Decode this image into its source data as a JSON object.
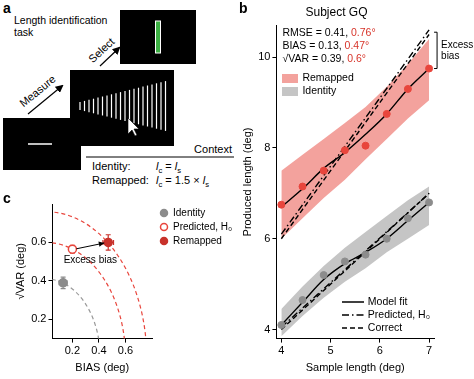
{
  "panel_a": {
    "label": "a",
    "title": "Length identification task",
    "steps": [
      "Measure",
      "Select"
    ],
    "context": {
      "header": "Context",
      "rows": [
        {
          "label": "Identity:",
          "formula": [
            {
              "text": "l",
              "sub": "c"
            },
            {
              "text": " = "
            },
            {
              "text": "l",
              "sub": "s"
            }
          ]
        },
        {
          "label": "Remapped:",
          "formula": [
            {
              "text": "l",
              "sub": "c"
            },
            {
              "text": " = 1.5 × "
            },
            {
              "text": "l",
              "sub": "s"
            }
          ]
        }
      ]
    }
  },
  "chart_data": [
    {
      "panel_label": "b",
      "type": "line",
      "title": "Subject GQ",
      "x_label": "Sample length (deg)",
      "y_label": "Produced length (deg)",
      "xlim": [
        3.9,
        7.1
      ],
      "ylim": [
        3.8,
        10.7
      ],
      "xticks": [
        4,
        5,
        6,
        7
      ],
      "yticks": [
        4,
        6,
        8,
        10
      ],
      "grid": false,
      "stats": [
        [
          {
            "text": "RMSE = 0.41, ",
            "color": "#000000"
          },
          {
            "text": "0.76°",
            "color": "#d7342a"
          }
        ],
        [
          {
            "text": "BIAS = 0.13, ",
            "color": "#000000"
          },
          {
            "text": "0.47°",
            "color": "#d7342a"
          }
        ],
        [
          {
            "text": "√VAR = 0.39, ",
            "color": "#000000"
          },
          {
            "text": "0.6°",
            "color": "#d7342a"
          }
        ]
      ],
      "series": [
        {
          "name": "Remapped",
          "color": "#e8453c",
          "x": [
            4,
            4.43,
            4.86,
            5.29,
            5.71,
            6.14,
            6.57,
            7
          ],
          "values": [
            6.75,
            7.15,
            7.5,
            7.95,
            8.05,
            8.75,
            9.3,
            9.75
          ],
          "band_lower": [
            6.0,
            6.45,
            6.9,
            7.3,
            7.75,
            8.2,
            8.65,
            9.05
          ],
          "band_upper": [
            7.5,
            7.85,
            8.2,
            8.55,
            8.9,
            9.35,
            9.85,
            10.4
          ],
          "fit": [
            6.7,
            7.1,
            7.55,
            7.9,
            8.3,
            8.75,
            9.3,
            9.75
          ],
          "line_x": [
            4,
            7
          ],
          "predicted": [
            6.1,
            10.6
          ],
          "correct": [
            6,
            10.5
          ]
        },
        {
          "name": "Identity",
          "color": "#8c8c8c",
          "x": [
            4,
            4.43,
            4.86,
            5.29,
            5.71,
            6.14,
            6.57,
            7
          ],
          "values": [
            4.1,
            4.65,
            5.2,
            5.5,
            5.65,
            6.0,
            6.45,
            6.8
          ],
          "band_lower": [
            3.85,
            4.3,
            4.7,
            5.05,
            5.35,
            5.7,
            6.0,
            6.3
          ],
          "band_upper": [
            4.45,
            4.95,
            5.4,
            5.8,
            6.15,
            6.5,
            6.85,
            7.15
          ],
          "fit": [
            4.1,
            4.6,
            5.1,
            5.45,
            5.7,
            6.0,
            6.4,
            6.8
          ],
          "line_x": [
            4,
            7
          ],
          "predicted": [
            4.05,
            7.0
          ],
          "correct": [
            4,
            7
          ]
        }
      ],
      "line_legend": [
        {
          "name": "Model fit",
          "line_style": "solid",
          "color": "#000000"
        },
        {
          "name": "Predicted, H₀",
          "line_style": "dashdot",
          "color": "#000000"
        },
        {
          "name": "Correct",
          "line_style": "dashed",
          "color": "#000000"
        }
      ],
      "annotation": {
        "text": "Excess bias",
        "x": 7,
        "y_from": 10.55,
        "y_to": 9.75
      }
    },
    {
      "panel_label": "c",
      "type": "scatter",
      "x_label": "BIAS (deg)",
      "y_label": "√VAR (deg)",
      "xlim": [
        0.05,
        0.8
      ],
      "ylim": [
        0.1,
        0.8
      ],
      "xticks": [
        0.2,
        0.4,
        0.6
      ],
      "yticks": [
        0.2,
        0.4,
        0.6
      ],
      "grid": false,
      "series": [
        {
          "name": "Identity",
          "color": "#8c8c8c",
          "marker": "filled",
          "x": [
            0.13
          ],
          "values": [
            0.39
          ],
          "x_error": [
            0.03
          ],
          "y_error": [
            0.03
          ]
        },
        {
          "name": "Predicted, H₀",
          "color": "#e8453c",
          "marker": "open",
          "x": [
            0.2
          ],
          "values": [
            0.565
          ],
          "x_error": [
            0.02
          ],
          "y_error": [
            0.02
          ]
        },
        {
          "name": "Remapped",
          "color": "#c8322b",
          "marker": "filled",
          "x": [
            0.47
          ],
          "values": [
            0.6
          ],
          "x_error": [
            0.04
          ],
          "y_error": [
            0.04
          ]
        }
      ],
      "circles": [
        {
          "radius": 0.41,
          "color": "#9a9a9a"
        },
        {
          "radius": 0.6,
          "color": "#e8453c"
        },
        {
          "radius": 0.76,
          "color": "#e8453c"
        }
      ],
      "annotation": {
        "text": "Excess bias",
        "from": [
          0.23,
          0.567
        ],
        "to": [
          0.44,
          0.597
        ]
      }
    }
  ]
}
